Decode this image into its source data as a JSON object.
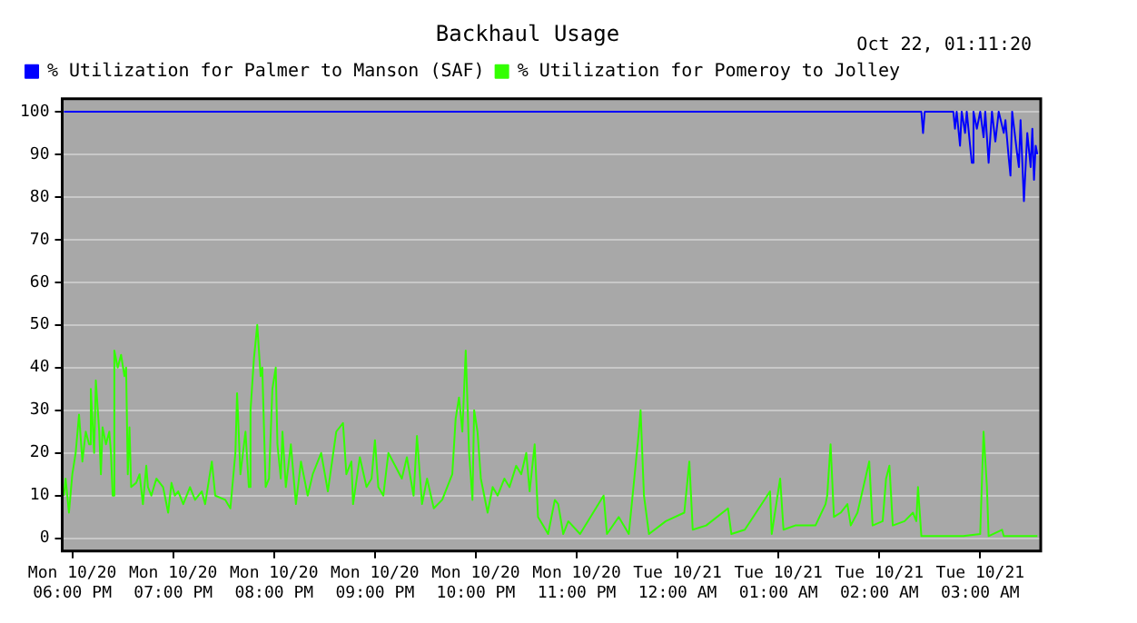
{
  "chart_data": {
    "type": "line",
    "title": "Backhaul Usage",
    "annotations": [
      "Oct 22, 01:11:20"
    ],
    "legend": "top left",
    "grid": "y",
    "marker": "none",
    "line_style": "solid",
    "xlim": [
      "--10-20T17:54",
      "--10-21T03:36"
    ],
    "ylim": [
      -3,
      103
    ],
    "xticks": [
      {
        "value": "--10-20T18:00",
        "label": "Mon 10/20 06:00 PM"
      },
      {
        "value": "--10-20T19:00",
        "label": "Mon 10/20 07:00 PM"
      },
      {
        "value": "--10-20T20:00",
        "label": "Mon 10/20 08:00 PM"
      },
      {
        "value": "--10-20T21:00",
        "label": "Mon 10/20 09:00 PM"
      },
      {
        "value": "--10-20T22:00",
        "label": "Mon 10/20 10:00 PM"
      },
      {
        "value": "--10-20T23:00",
        "label": "Mon 10/20 11:00 PM"
      },
      {
        "value": "--10-21T00:00",
        "label": "Tue 10/21 12:00 AM"
      },
      {
        "value": "--10-21T01:00",
        "label": "Tue 10/21 01:00 AM"
      },
      {
        "value": "--10-21T02:00",
        "label": "Tue 10/21 02:00 AM"
      },
      {
        "value": "--10-21T03:00",
        "label": "Tue 10/21 03:00 AM"
      }
    ],
    "yticks": [
      0,
      10,
      20,
      30,
      40,
      50,
      60,
      70,
      80,
      90,
      100
    ],
    "series": [
      {
        "name": "% Utilization for Palmer to Manson (SAF)",
        "color": "#0000ff",
        "x": [
          "--10-20T17:55",
          "--10-21T02:25",
          "--10-21T02:26",
          "--10-21T02:27",
          "--10-21T02:44",
          "--10-21T02:45",
          "--10-21T02:46",
          "--10-21T02:48",
          "--10-21T02:49",
          "--10-21T02:51",
          "--10-21T02:52",
          "--10-21T02:55",
          "--10-21T02:56",
          "--10-21T02:58",
          "--10-21T03:00",
          "--10-21T03:02",
          "--10-21T03:03",
          "--10-21T03:05",
          "--10-21T03:07",
          "--10-21T03:09",
          "--10-21T03:11",
          "--10-21T03:14",
          "--10-21T03:15",
          "--10-21T03:17",
          "--10-21T03:18",
          "--10-21T03:19",
          "--10-21T03:22",
          "--10-21T03:23",
          "--10-21T03:24",
          "--10-21T03:26",
          "--10-21T03:28",
          "--10-21T03:29",
          "--10-21T03:30",
          "--10-21T03:31",
          "--10-21T03:32",
          "--10-21T03:33",
          "--10-21T03:34"
        ],
        "values": [
          100,
          100,
          95,
          100,
          100,
          96,
          100,
          92,
          100,
          95,
          100,
          88,
          100,
          96,
          100,
          94,
          100,
          88,
          100,
          93,
          100,
          95,
          98,
          89,
          85,
          100,
          90,
          87,
          98,
          79,
          95,
          91,
          87,
          96,
          84,
          92,
          90
        ]
      },
      {
        "name": "% Utilization for Pomeroy to Jolley",
        "color": "#33ff00",
        "x": [
          "--10-20T17:55",
          "--10-20T17:56",
          "--10-20T17:58",
          "--10-20T18:00",
          "--10-20T18:02",
          "--10-20T18:04",
          "--10-20T18:06",
          "--10-20T18:08",
          "--10-20T18:10",
          "--10-20T18:11",
          "--10-20T18:13",
          "--10-20T18:14",
          "--10-20T18:16",
          "--10-20T18:17",
          "--10-20T18:18",
          "--10-20T18:20",
          "--10-20T18:22",
          "--10-20T18:23",
          "--10-20T18:24",
          "--10-20T18:25",
          "--10-20T18:27",
          "--10-20T18:29",
          "--10-20T18:31",
          "--10-20T18:32",
          "--10-20T18:33",
          "--10-20T18:34",
          "--10-20T18:35",
          "--10-20T18:38",
          "--10-20T18:40",
          "--10-20T18:42",
          "--10-20T18:44",
          "--10-20T18:45",
          "--10-20T18:47",
          "--10-20T18:50",
          "--10-20T18:54",
          "--10-20T18:57",
          "--10-20T18:59",
          "--10-20T19:01",
          "--10-20T19:03",
          "--10-20T19:06",
          "--10-20T19:10",
          "--10-20T19:13",
          "--10-20T19:17",
          "--10-20T19:19",
          "--10-20T19:23",
          "--10-20T19:25",
          "--10-20T19:31",
          "--10-20T19:34",
          "--10-20T19:37",
          "--10-20T19:38",
          "--10-20T19:40",
          "--10-20T19:43",
          "--10-20T19:45",
          "--10-20T19:46",
          "--10-20T19:48",
          "--10-20T19:50",
          "--10-20T19:52",
          "--10-20T19:53",
          "--10-20T19:55",
          "--10-20T19:57",
          "--10-20T19:59",
          "--10-20T20:01",
          "--10-20T20:02",
          "--10-20T20:04",
          "--10-20T20:05",
          "--10-20T20:07",
          "--10-20T20:10",
          "--10-20T20:13",
          "--10-20T20:16",
          "--10-20T20:20",
          "--10-20T20:23",
          "--10-20T20:28",
          "--10-20T20:32",
          "--10-20T20:37",
          "--10-20T20:41",
          "--10-20T20:43",
          "--10-20T20:46",
          "--10-20T20:47",
          "--10-20T20:51",
          "--10-20T20:55",
          "--10-20T20:58",
          "--10-20T21:00",
          "--10-20T21:02",
          "--10-20T21:05",
          "--10-20T21:08",
          "--10-20T21:12",
          "--10-20T21:16",
          "--10-20T21:19",
          "--10-20T21:23",
          "--10-20T21:25",
          "--10-20T21:28",
          "--10-20T21:31",
          "--10-20T21:35",
          "--10-20T21:40",
          "--10-20T21:46",
          "--10-20T21:48",
          "--10-20T21:50",
          "--10-20T21:52",
          "--10-20T21:54",
          "--10-20T21:56",
          "--10-20T21:58",
          "--10-20T21:59",
          "--10-20T22:01",
          "--10-20T22:03",
          "--10-20T22:07",
          "--10-20T22:10",
          "--10-20T22:13",
          "--10-20T22:17",
          "--10-20T22:20",
          "--10-20T22:24",
          "--10-20T22:27",
          "--10-20T22:30",
          "--10-20T22:32",
          "--10-20T22:35",
          "--10-20T22:37",
          "--10-20T22:40",
          "--10-20T22:43",
          "--10-20T22:47",
          "--10-20T22:49",
          "--10-20T22:52",
          "--10-20T22:55",
          "--10-20T23:02",
          "--10-20T23:16",
          "--10-20T23:18",
          "--10-20T23:25",
          "--10-20T23:31",
          "--10-20T23:37",
          "--10-20T23:38",
          "--10-20T23:40",
          "--10-20T23:43",
          "--10-20T23:53",
          "--10-21T00:04",
          "--10-21T00:07",
          "--10-21T00:09",
          "--10-21T00:17",
          "--10-21T00:30",
          "--10-21T00:32",
          "--10-21T00:40",
          "--10-21T00:55",
          "--10-21T00:56",
          "--10-21T01:01",
          "--10-21T01:03",
          "--10-21T01:10",
          "--10-21T01:22",
          "--10-21T01:28",
          "--10-21T01:29",
          "--10-21T01:31",
          "--10-21T01:33",
          "--10-21T01:37",
          "--10-21T01:41",
          "--10-21T01:43",
          "--10-21T01:47",
          "--10-21T01:54",
          "--10-21T01:56",
          "--10-21T02:02",
          "--10-21T02:04",
          "--10-21T02:06",
          "--10-21T02:08",
          "--10-21T02:15",
          "--10-21T02:20",
          "--10-21T02:22",
          "--10-21T02:23",
          "--10-21T02:25",
          "--10-21T02:43",
          "--10-21T02:50",
          "--10-21T03:00",
          "--10-21T03:02",
          "--10-21T03:04",
          "--10-21T03:05",
          "--10-21T03:13",
          "--10-21T03:14",
          "--10-21T03:34"
        ],
        "values": [
          10,
          14,
          6,
          15,
          20,
          29,
          18,
          25,
          22,
          35,
          20,
          37,
          25,
          15,
          26,
          22,
          25,
          20,
          10,
          44,
          40,
          43,
          38,
          40,
          15,
          26,
          12,
          13,
          15,
          8,
          17,
          12,
          10,
          14,
          12,
          6,
          13,
          10,
          11,
          8,
          12,
          9,
          11,
          8,
          18,
          10,
          9,
          7,
          20,
          34,
          15,
          25,
          12,
          30,
          42,
          50,
          38,
          40,
          12,
          14,
          35,
          40,
          22,
          14,
          25,
          12,
          22,
          8,
          18,
          10,
          15,
          20,
          11,
          25,
          27,
          15,
          18,
          8,
          19,
          12,
          14,
          23,
          12,
          10,
          20,
          17,
          14,
          19,
          10,
          24,
          8,
          14,
          7,
          9,
          15,
          28,
          33,
          25,
          44,
          20,
          9,
          30,
          25,
          14,
          6,
          12,
          10,
          14,
          12,
          17,
          15,
          20,
          11,
          22,
          5,
          3,
          1,
          9,
          8,
          1,
          4,
          1,
          10,
          1,
          5,
          1,
          25,
          30,
          10,
          1,
          4,
          6,
          18,
          2,
          3,
          7,
          1,
          2,
          11,
          1,
          14,
          2,
          3,
          3,
          8,
          10,
          22,
          5,
          6,
          8,
          3,
          6,
          18,
          3,
          4,
          14,
          17,
          3,
          4,
          6,
          4,
          12,
          0.5,
          0.5,
          0.5,
          1,
          25,
          12,
          0.5,
          2,
          0.5,
          0.5
        ]
      }
    ]
  }
}
